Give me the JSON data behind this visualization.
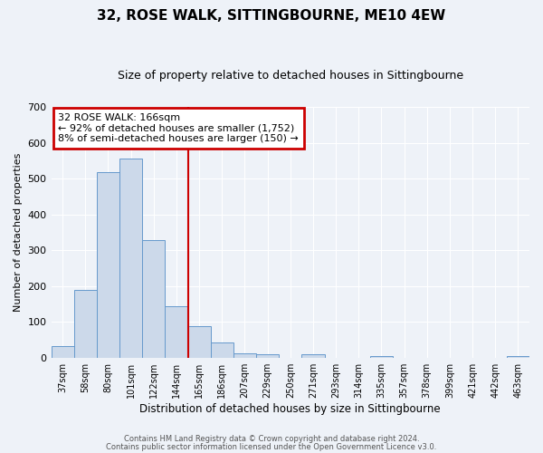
{
  "title": "32, ROSE WALK, SITTINGBOURNE, ME10 4EW",
  "subtitle": "Size of property relative to detached houses in Sittingbourne",
  "xlabel": "Distribution of detached houses by size in Sittingbourne",
  "ylabel": "Number of detached properties",
  "bin_labels": [
    "37sqm",
    "58sqm",
    "80sqm",
    "101sqm",
    "122sqm",
    "144sqm",
    "165sqm",
    "186sqm",
    "207sqm",
    "229sqm",
    "250sqm",
    "271sqm",
    "293sqm",
    "314sqm",
    "335sqm",
    "357sqm",
    "378sqm",
    "399sqm",
    "421sqm",
    "442sqm",
    "463sqm"
  ],
  "bar_heights": [
    33,
    190,
    519,
    557,
    328,
    144,
    88,
    42,
    12,
    10,
    0,
    10,
    0,
    0,
    5,
    0,
    0,
    0,
    0,
    0,
    5
  ],
  "bar_color": "#ccd9ea",
  "bar_edge_color": "#6699cc",
  "vline_color": "#cc0000",
  "vline_bin_index": 6,
  "annotation_title": "32 ROSE WALK: 166sqm",
  "annotation_line1": "← 92% of detached houses are smaller (1,752)",
  "annotation_line2": "8% of semi-detached houses are larger (150) →",
  "annotation_box_color": "#cc0000",
  "ylim": [
    0,
    700
  ],
  "yticks": [
    0,
    100,
    200,
    300,
    400,
    500,
    600,
    700
  ],
  "footer1": "Contains HM Land Registry data © Crown copyright and database right 2024.",
  "footer2": "Contains public sector information licensed under the Open Government Licence v3.0.",
  "background_color": "#eef2f8",
  "plot_bg_color": "#eef2f8",
  "title_fontsize": 11,
  "subtitle_fontsize": 9,
  "ylabel_fontsize": 8,
  "xlabel_fontsize": 8.5,
  "ytick_fontsize": 8,
  "xtick_fontsize": 7
}
